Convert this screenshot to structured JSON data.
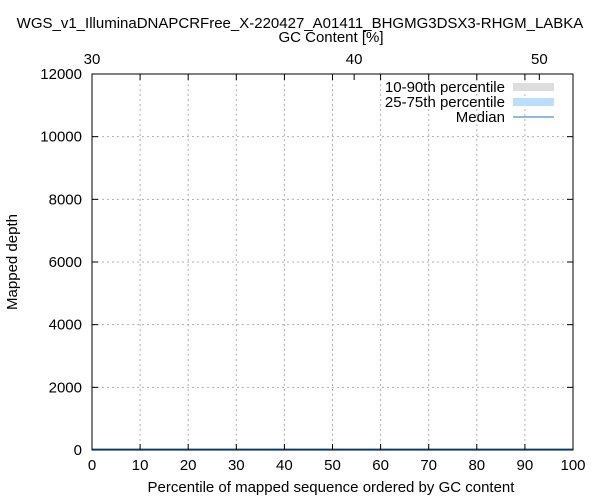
{
  "chart_data": {
    "type": "area",
    "title": "WGS_v1_IlluminaDNAPCRFree_X-220427_A01411_BHGMG3DSX3-RHGM_LABKA",
    "xlabel": "Percentile of mapped sequence ordered by GC content",
    "ylabel": "Mapped depth",
    "x2label": "GC Content [%]",
    "xlim": [
      0,
      100
    ],
    "ylim": [
      0,
      12000
    ],
    "x2_tick_values": [
      30,
      40,
      50
    ],
    "x2_tick_positions_percentile": [
      0,
      54.5,
      93
    ],
    "xticks": [
      "0",
      "10",
      "20",
      "30",
      "40",
      "50",
      "60",
      "70",
      "80",
      "90",
      "100"
    ],
    "yticks": [
      "0",
      "2000",
      "4000",
      "6000",
      "8000",
      "10000",
      "12000"
    ],
    "x2ticks": [
      "30",
      "40",
      "50"
    ],
    "grid": true,
    "legend_position": "top-right",
    "legend": [
      "10-90th percentile",
      "25-75th percentile",
      "Median"
    ],
    "colors": {
      "p10_90": "#dddddd",
      "p25_75": "#bbddff",
      "median": "#1f77c4",
      "grid": "#b0b0b0",
      "axis": "#000000"
    },
    "series": [
      {
        "name": "10-90th percentile",
        "x": [
          0,
          25,
          50,
          75,
          100
        ],
        "low": [
          0,
          0,
          0,
          0,
          0
        ],
        "high": [
          40,
          40,
          40,
          40,
          40
        ]
      },
      {
        "name": "25-75th percentile",
        "x": [
          0,
          25,
          50,
          75,
          100
        ],
        "low": [
          0,
          0,
          0,
          0,
          0
        ],
        "high": [
          35,
          35,
          35,
          35,
          35
        ]
      },
      {
        "name": "Median",
        "x": [
          0,
          25,
          50,
          75,
          100
        ],
        "y": [
          30,
          30,
          30,
          30,
          30
        ]
      }
    ]
  }
}
